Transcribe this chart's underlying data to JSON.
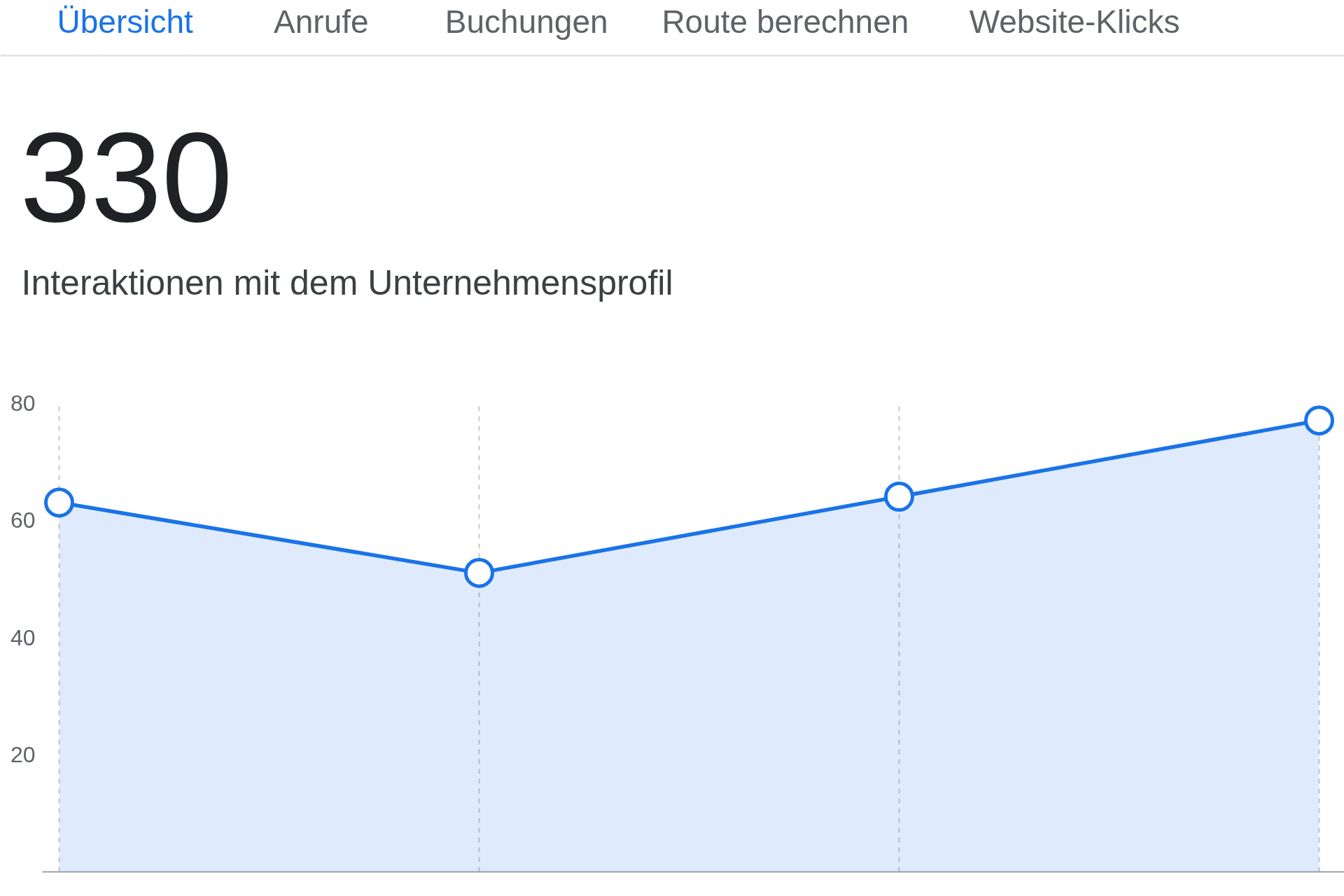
{
  "chart_data": {
    "type": "area",
    "title": "330",
    "subtitle": "Interaktionen mit dem Unternehmensprofil",
    "annotations": [
      "Übersicht",
      "Anrufe",
      "Buchungen",
      "Route berechnen",
      "Website-Klicks"
    ],
    "categories": [
      null,
      null,
      null,
      null
    ],
    "series": [
      {
        "color": "#1a73e8",
        "values": [
          63,
          51,
          64,
          77
        ]
      }
    ],
    "ylim": [
      0,
      80
    ],
    "yticks": [
      20,
      40,
      60,
      80
    ],
    "grid": "x",
    "marker": "circle",
    "line_style": "solid",
    "tick_labels": "y"
  }
}
